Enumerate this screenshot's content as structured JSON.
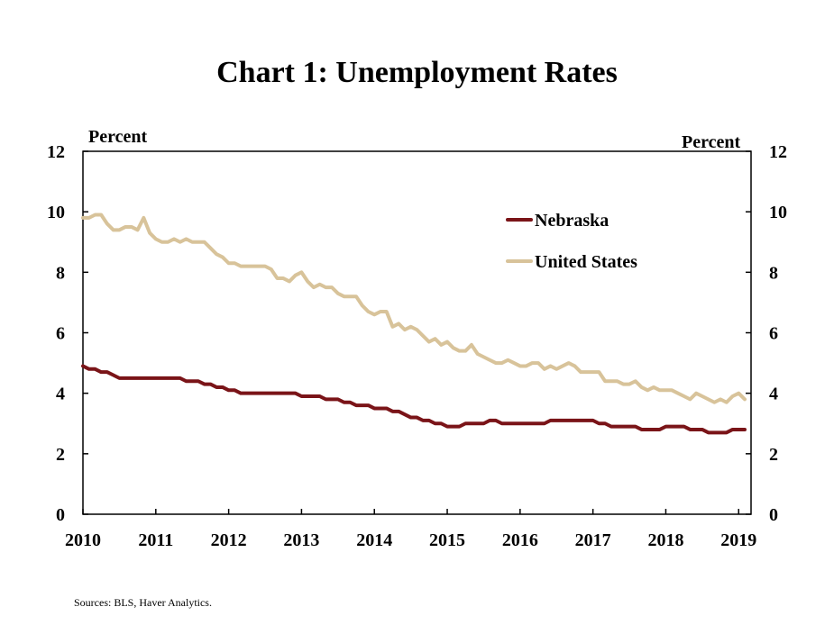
{
  "title": "Chart 1: Unemployment Rates",
  "left_unit": "Percent",
  "right_unit": "Percent",
  "source": "Sources: BLS, Haver Analytics.",
  "chart_data": {
    "type": "line",
    "title": "Chart 1: Unemployment Rates",
    "ylabel": "Percent",
    "ylabel_right": "Percent",
    "ylim": [
      0,
      12
    ],
    "yticks": [
      0,
      2,
      4,
      6,
      8,
      10,
      12
    ],
    "xlim": [
      2010,
      2019.17
    ],
    "xticks": [
      2010,
      2011,
      2012,
      2013,
      2014,
      2015,
      2016,
      2017,
      2018,
      2019
    ],
    "grid": false,
    "legend": "upper-right-inside",
    "series": [
      {
        "name": "Nebraska",
        "color": "#7a1418",
        "start": "2010-01",
        "frequency": "monthly",
        "values": [
          4.9,
          4.8,
          4.8,
          4.7,
          4.7,
          4.6,
          4.5,
          4.5,
          4.5,
          4.5,
          4.5,
          4.5,
          4.5,
          4.5,
          4.5,
          4.5,
          4.5,
          4.4,
          4.4,
          4.4,
          4.3,
          4.3,
          4.2,
          4.2,
          4.1,
          4.1,
          4.0,
          4.0,
          4.0,
          4.0,
          4.0,
          4.0,
          4.0,
          4.0,
          4.0,
          4.0,
          3.9,
          3.9,
          3.9,
          3.9,
          3.8,
          3.8,
          3.8,
          3.7,
          3.7,
          3.6,
          3.6,
          3.6,
          3.5,
          3.5,
          3.5,
          3.4,
          3.4,
          3.3,
          3.2,
          3.2,
          3.1,
          3.1,
          3.0,
          3.0,
          2.9,
          2.9,
          2.9,
          3.0,
          3.0,
          3.0,
          3.0,
          3.1,
          3.1,
          3.0,
          3.0,
          3.0,
          3.0,
          3.0,
          3.0,
          3.0,
          3.0,
          3.1,
          3.1,
          3.1,
          3.1,
          3.1,
          3.1,
          3.1,
          3.1,
          3.0,
          3.0,
          2.9,
          2.9,
          2.9,
          2.9,
          2.9,
          2.8,
          2.8,
          2.8,
          2.8,
          2.9,
          2.9,
          2.9,
          2.9,
          2.8,
          2.8,
          2.8,
          2.7,
          2.7,
          2.7,
          2.7,
          2.8,
          2.8,
          2.8
        ]
      },
      {
        "name": "United States",
        "color": "#d8c39a",
        "start": "2010-01",
        "frequency": "monthly",
        "values": [
          9.8,
          9.8,
          9.9,
          9.9,
          9.6,
          9.4,
          9.4,
          9.5,
          9.5,
          9.4,
          9.8,
          9.3,
          9.1,
          9.0,
          9.0,
          9.1,
          9.0,
          9.1,
          9.0,
          9.0,
          9.0,
          8.8,
          8.6,
          8.5,
          8.3,
          8.3,
          8.2,
          8.2,
          8.2,
          8.2,
          8.2,
          8.1,
          7.8,
          7.8,
          7.7,
          7.9,
          8.0,
          7.7,
          7.5,
          7.6,
          7.5,
          7.5,
          7.3,
          7.2,
          7.2,
          7.2,
          6.9,
          6.7,
          6.6,
          6.7,
          6.7,
          6.2,
          6.3,
          6.1,
          6.2,
          6.1,
          5.9,
          5.7,
          5.8,
          5.6,
          5.7,
          5.5,
          5.4,
          5.4,
          5.6,
          5.3,
          5.2,
          5.1,
          5.0,
          5.0,
          5.1,
          5.0,
          4.9,
          4.9,
          5.0,
          5.0,
          4.8,
          4.9,
          4.8,
          4.9,
          5.0,
          4.9,
          4.7,
          4.7,
          4.7,
          4.7,
          4.4,
          4.4,
          4.4,
          4.3,
          4.3,
          4.4,
          4.2,
          4.1,
          4.2,
          4.1,
          4.1,
          4.1,
          4.0,
          3.9,
          3.8,
          4.0,
          3.9,
          3.8,
          3.7,
          3.8,
          3.7,
          3.9,
          4.0,
          3.8
        ]
      }
    ]
  }
}
